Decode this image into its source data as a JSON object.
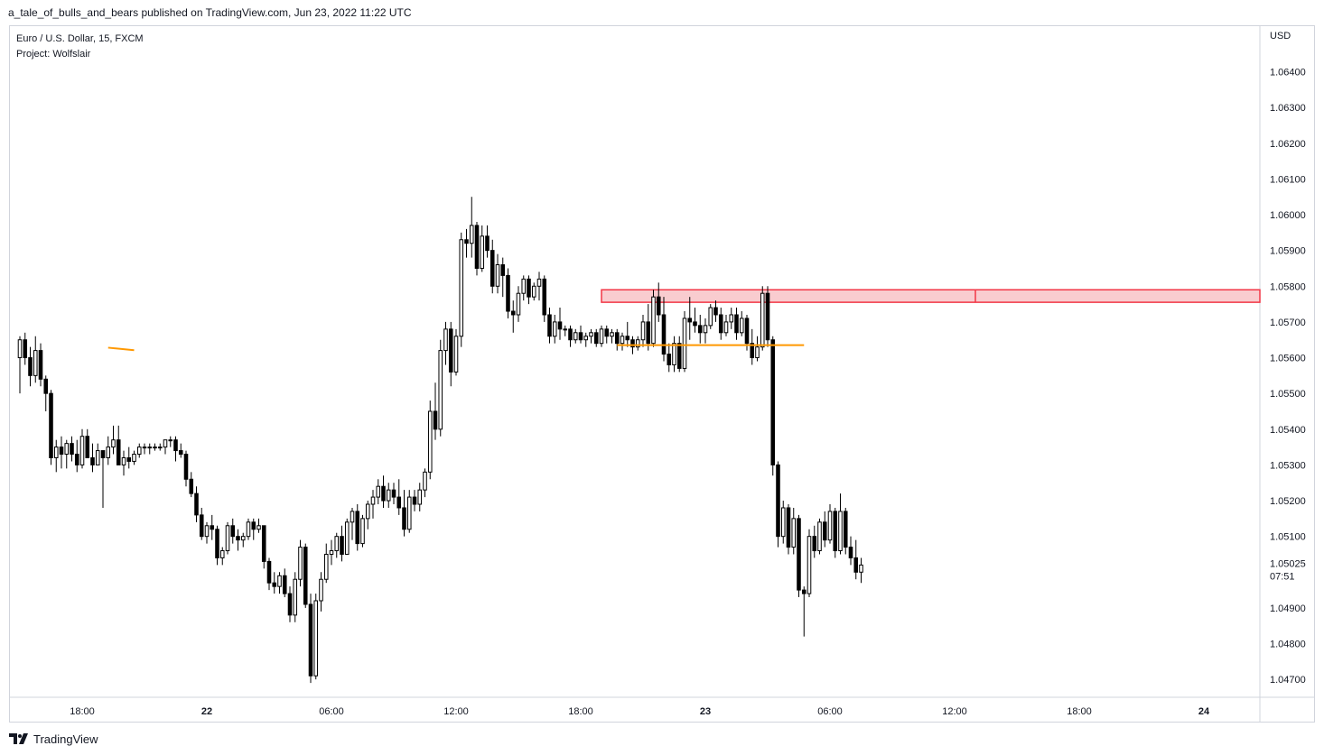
{
  "header": {
    "publisher_line": "a_tale_of_bulls_and_bears published on TradingView.com, Jun 23, 2022 11:22 UTC"
  },
  "legend": {
    "symbol_line": "Euro / U.S. Dollar, 15, FXCM",
    "project_line": "Project: Wolfslair"
  },
  "footer": {
    "brand": "TradingView",
    "logo_icon": "tradingview-logo-icon"
  },
  "colors": {
    "candle": "#000000",
    "zone_fill": "#f9cccf",
    "zone_border": "#f23645",
    "support_line": "#ff9800",
    "grid_border": "#d1d4dc",
    "last_price_bg": "#ffffff"
  },
  "chart_data": {
    "type": "candlestick",
    "symbol": "Euro / U.S. Dollar",
    "interval": "15",
    "source": "FXCM",
    "currency_label": "USD",
    "ylim": [
      1.0465,
      1.0653
    ],
    "xlim": [
      "Jun 21 15:00",
      "Jun 24 05:00"
    ],
    "y_ticks": [
      "1.06400",
      "1.06300",
      "1.06200",
      "1.06100",
      "1.06000",
      "1.05900",
      "1.05800",
      "1.05700",
      "1.05600",
      "1.05500",
      "1.05400",
      "1.05300",
      "1.05200",
      "1.05100",
      "1.04900",
      "1.04800",
      "1.04700"
    ],
    "x_ticks": [
      {
        "label": "18:00",
        "time": "Jun 21 18:00",
        "bold": false
      },
      {
        "label": "22",
        "time": "Jun 22 00:00",
        "bold": true
      },
      {
        "label": "06:00",
        "time": "Jun 22 06:00",
        "bold": false
      },
      {
        "label": "12:00",
        "time": "Jun 22 12:00",
        "bold": false
      },
      {
        "label": "18:00",
        "time": "Jun 22 18:00",
        "bold": false
      },
      {
        "label": "23",
        "time": "Jun 23 00:00",
        "bold": true
      },
      {
        "label": "06:00",
        "time": "Jun 23 06:00",
        "bold": false
      },
      {
        "label": "12:00",
        "time": "Jun 23 12:00",
        "bold": false
      },
      {
        "label": "18:00",
        "time": "Jun 23 18:00",
        "bold": false
      },
      {
        "label": "24",
        "time": "Jun 24 00:00",
        "bold": true
      }
    ],
    "last_price": {
      "value": "1.05025",
      "countdown": "07:51"
    },
    "candles_start": "Jun 21 15:00",
    "bar_minutes": 15,
    "ohlc": [
      [
        1.056,
        1.0566,
        1.055,
        1.0565
      ],
      [
        1.0565,
        1.0567,
        1.0558,
        1.056
      ],
      [
        1.056,
        1.0563,
        1.0552,
        1.0555
      ],
      [
        1.0555,
        1.0566,
        1.0553,
        1.0562
      ],
      [
        1.0562,
        1.0564,
        1.0552,
        1.0554
      ],
      [
        1.0554,
        1.0555,
        1.0545,
        1.055
      ],
      [
        1.055,
        1.0551,
        1.053,
        1.0532
      ],
      [
        1.0532,
        1.0537,
        1.0528,
        1.0535
      ],
      [
        1.0535,
        1.0538,
        1.0529,
        1.0533
      ],
      [
        1.0533,
        1.0537,
        1.0529,
        1.0536
      ],
      [
        1.0536,
        1.0538,
        1.0531,
        1.0533
      ],
      [
        1.0533,
        1.0537,
        1.0528,
        1.053
      ],
      [
        1.053,
        1.054,
        1.0529,
        1.0538
      ],
      [
        1.0538,
        1.054,
        1.0532,
        1.0532
      ],
      [
        1.0532,
        1.0536,
        1.0528,
        1.053
      ],
      [
        1.053,
        1.0536,
        1.053,
        1.0534
      ],
      [
        1.0534,
        1.0534,
        1.0518,
        1.0532
      ],
      [
        1.0532,
        1.0538,
        1.053,
        1.0535
      ],
      [
        1.0535,
        1.0541,
        1.0533,
        1.0537
      ],
      [
        1.0537,
        1.0541,
        1.053,
        1.053
      ],
      [
        1.053,
        1.0534,
        1.0527,
        1.0532
      ],
      [
        1.0532,
        1.0535,
        1.0529,
        1.0531
      ],
      [
        1.0531,
        1.0534,
        1.053,
        1.0533
      ],
      [
        1.0533,
        1.0536,
        1.0532,
        1.0535
      ],
      [
        1.0535,
        1.0536,
        1.0533,
        1.0535
      ],
      [
        1.0535,
        1.0536,
        1.0533,
        1.0535
      ],
      [
        1.0535,
        1.0536,
        1.0534,
        1.0535
      ],
      [
        1.0535,
        1.0536,
        1.0534,
        1.0535
      ],
      [
        1.0535,
        1.0537,
        1.0533,
        1.0537
      ],
      [
        1.0537,
        1.0538,
        1.0535,
        1.0537
      ],
      [
        1.0537,
        1.0538,
        1.0531,
        1.0534
      ],
      [
        1.0534,
        1.0536,
        1.0532,
        1.0533
      ],
      [
        1.0533,
        1.0534,
        1.0524,
        1.0526
      ],
      [
        1.0526,
        1.0528,
        1.0521,
        1.0522
      ],
      [
        1.0522,
        1.0524,
        1.0514,
        1.0516
      ],
      [
        1.0516,
        1.0518,
        1.0509,
        1.051
      ],
      [
        1.051,
        1.0514,
        1.0508,
        1.0513
      ],
      [
        1.0513,
        1.0516,
        1.0509,
        1.0512
      ],
      [
        1.0512,
        1.0513,
        1.0502,
        1.0504
      ],
      [
        1.0504,
        1.0507,
        1.0502,
        1.0506
      ],
      [
        1.0506,
        1.0514,
        1.0505,
        1.0513
      ],
      [
        1.0513,
        1.0515,
        1.0508,
        1.051
      ],
      [
        1.051,
        1.0512,
        1.0506,
        1.0509
      ],
      [
        1.0509,
        1.0511,
        1.0507,
        1.051
      ],
      [
        1.051,
        1.0515,
        1.0509,
        1.0514
      ],
      [
        1.0514,
        1.0515,
        1.0509,
        1.0512
      ],
      [
        1.0512,
        1.0515,
        1.0511,
        1.0513
      ],
      [
        1.0513,
        1.0513,
        1.0501,
        1.0503
      ],
      [
        1.0503,
        1.0504,
        1.0495,
        1.0497
      ],
      [
        1.0497,
        1.05,
        1.0494,
        1.0496
      ],
      [
        1.0496,
        1.05,
        1.0494,
        1.0499
      ],
      [
        1.0499,
        1.0501,
        1.0493,
        1.0494
      ],
      [
        1.0494,
        1.0496,
        1.0486,
        1.0488
      ],
      [
        1.0488,
        1.05,
        1.0486,
        1.0498
      ],
      [
        1.0498,
        1.0509,
        1.0496,
        1.0507
      ],
      [
        1.0507,
        1.0508,
        1.049,
        1.0491
      ],
      [
        1.0491,
        1.0494,
        1.0469,
        1.0471
      ],
      [
        1.0471,
        1.0494,
        1.047,
        1.0492
      ],
      [
        1.0492,
        1.05,
        1.0489,
        1.0498
      ],
      [
        1.0498,
        1.0508,
        1.0497,
        1.0505
      ],
      [
        1.0505,
        1.0509,
        1.0502,
        1.0506
      ],
      [
        1.0506,
        1.0511,
        1.0504,
        1.051
      ],
      [
        1.051,
        1.0513,
        1.0503,
        1.0505
      ],
      [
        1.0505,
        1.0515,
        1.0505,
        1.0514
      ],
      [
        1.0514,
        1.0518,
        1.0509,
        1.0517
      ],
      [
        1.0517,
        1.0519,
        1.0506,
        1.0508
      ],
      [
        1.0508,
        1.0516,
        1.0507,
        1.0515
      ],
      [
        1.0515,
        1.052,
        1.0512,
        1.0519
      ],
      [
        1.0519,
        1.0523,
        1.0515,
        1.0521
      ],
      [
        1.0521,
        1.0526,
        1.0519,
        1.0524
      ],
      [
        1.0524,
        1.0527,
        1.0518,
        1.052
      ],
      [
        1.052,
        1.0525,
        1.0518,
        1.0523
      ],
      [
        1.0523,
        1.0525,
        1.0519,
        1.0521
      ],
      [
        1.0521,
        1.0526,
        1.0516,
        1.0518
      ],
      [
        1.0518,
        1.0523,
        1.051,
        1.0512
      ],
      [
        1.0512,
        1.0523,
        1.0511,
        1.0521
      ],
      [
        1.0521,
        1.0523,
        1.0517,
        1.0519
      ],
      [
        1.0519,
        1.0525,
        1.0517,
        1.0523
      ],
      [
        1.0523,
        1.0529,
        1.0521,
        1.0528
      ],
      [
        1.0528,
        1.0548,
        1.0526,
        1.0545
      ],
      [
        1.0545,
        1.0553,
        1.0537,
        1.054
      ],
      [
        1.054,
        1.0565,
        1.0538,
        1.0562
      ],
      [
        1.0562,
        1.057,
        1.0558,
        1.0568
      ],
      [
        1.0568,
        1.057,
        1.0552,
        1.0556
      ],
      [
        1.0556,
        1.0568,
        1.0555,
        1.0566
      ],
      [
        1.0566,
        1.0595,
        1.0563,
        1.0593
      ],
      [
        1.0593,
        1.0596,
        1.0588,
        1.0592
      ],
      [
        1.0592,
        1.0605,
        1.0588,
        1.0597
      ],
      [
        1.0597,
        1.0598,
        1.0583,
        1.0585
      ],
      [
        1.0585,
        1.0597,
        1.0584,
        1.0594
      ],
      [
        1.0594,
        1.0597,
        1.0588,
        1.059
      ],
      [
        1.059,
        1.0593,
        1.0578,
        1.058
      ],
      [
        1.058,
        1.0589,
        1.0578,
        1.0586
      ],
      [
        1.0586,
        1.0588,
        1.0577,
        1.0583
      ],
      [
        1.0583,
        1.0585,
        1.0571,
        1.0573
      ],
      [
        1.0573,
        1.0576,
        1.0567,
        1.0572
      ],
      [
        1.0572,
        1.058,
        1.057,
        1.0578
      ],
      [
        1.0578,
        1.0583,
        1.0576,
        1.0582
      ],
      [
        1.0582,
        1.0583,
        1.0575,
        1.0577
      ],
      [
        1.0577,
        1.0581,
        1.0576,
        1.058
      ],
      [
        1.058,
        1.0584,
        1.0576,
        1.0582
      ],
      [
        1.0582,
        1.0583,
        1.057,
        1.0572
      ],
      [
        1.0572,
        1.0574,
        1.0564,
        1.0566
      ],
      [
        1.0566,
        1.0572,
        1.0564,
        1.057
      ],
      [
        1.057,
        1.0574,
        1.0565,
        1.0568
      ],
      [
        1.0568,
        1.0569,
        1.0566,
        1.0568
      ],
      [
        1.0568,
        1.0569,
        1.0563,
        1.0565
      ],
      [
        1.0565,
        1.0568,
        1.0564,
        1.0567
      ],
      [
        1.0567,
        1.0569,
        1.0564,
        1.0565
      ],
      [
        1.0565,
        1.0567,
        1.0563,
        1.0566
      ],
      [
        1.0566,
        1.0568,
        1.0564,
        1.0567
      ],
      [
        1.0567,
        1.0568,
        1.0563,
        1.0564
      ],
      [
        1.0564,
        1.0569,
        1.0563,
        1.0568
      ],
      [
        1.0568,
        1.0569,
        1.0564,
        1.0566
      ],
      [
        1.0566,
        1.0568,
        1.0564,
        1.0567
      ],
      [
        1.0567,
        1.0568,
        1.0562,
        1.0564
      ],
      [
        1.0564,
        1.0567,
        1.0562,
        1.0566
      ],
      [
        1.0566,
        1.057,
        1.0563,
        1.0565
      ],
      [
        1.0565,
        1.0566,
        1.0561,
        1.0563
      ],
      [
        1.0563,
        1.0566,
        1.0562,
        1.0565
      ],
      [
        1.0565,
        1.0572,
        1.0563,
        1.057
      ],
      [
        1.057,
        1.0575,
        1.0562,
        1.0564
      ],
      [
        1.0564,
        1.0579,
        1.0563,
        1.0577
      ],
      [
        1.0577,
        1.0581,
        1.057,
        1.0572
      ],
      [
        1.0572,
        1.0577,
        1.0559,
        1.0561
      ],
      [
        1.0561,
        1.0564,
        1.0556,
        1.0558
      ],
      [
        1.0558,
        1.0566,
        1.0556,
        1.0564
      ],
      [
        1.0564,
        1.0566,
        1.0556,
        1.0557
      ],
      [
        1.0557,
        1.0573,
        1.0556,
        1.0571
      ],
      [
        1.0571,
        1.0577,
        1.0565,
        1.057
      ],
      [
        1.057,
        1.0574,
        1.0567,
        1.0569
      ],
      [
        1.0569,
        1.0572,
        1.0564,
        1.0567
      ],
      [
        1.0567,
        1.0571,
        1.0564,
        1.0569
      ],
      [
        1.0569,
        1.0575,
        1.0568,
        1.0574
      ],
      [
        1.0574,
        1.0576,
        1.057,
        1.0572
      ],
      [
        1.0572,
        1.0574,
        1.0565,
        1.0567
      ],
      [
        1.0567,
        1.0572,
        1.0566,
        1.057
      ],
      [
        1.057,
        1.0574,
        1.0568,
        1.0572
      ],
      [
        1.0572,
        1.0574,
        1.0565,
        1.0567
      ],
      [
        1.0567,
        1.0573,
        1.0566,
        1.0571
      ],
      [
        1.0571,
        1.0572,
        1.0562,
        1.0564
      ],
      [
        1.0564,
        1.0568,
        1.0558,
        1.056
      ],
      [
        1.056,
        1.0566,
        1.0559,
        1.0563
      ],
      [
        1.0563,
        1.058,
        1.0562,
        1.0578
      ],
      [
        1.0578,
        1.058,
        1.0563,
        1.0565
      ],
      [
        1.0565,
        1.0566,
        1.0527,
        1.053
      ],
      [
        1.053,
        1.0531,
        1.0507,
        1.051
      ],
      [
        1.051,
        1.052,
        1.0508,
        1.0518
      ],
      [
        1.0518,
        1.0519,
        1.0505,
        1.0507
      ],
      [
        1.0507,
        1.0518,
        1.0505,
        1.0515
      ],
      [
        1.0515,
        1.0516,
        1.0493,
        1.0495
      ],
      [
        1.0495,
        1.0496,
        1.0482,
        1.0494
      ],
      [
        1.0494,
        1.0512,
        1.0493,
        1.051
      ],
      [
        1.051,
        1.0513,
        1.0504,
        1.0506
      ],
      [
        1.0506,
        1.0515,
        1.0505,
        1.0514
      ],
      [
        1.0514,
        1.0517,
        1.0507,
        1.0509
      ],
      [
        1.0509,
        1.0519,
        1.0508,
        1.0517
      ],
      [
        1.0517,
        1.0518,
        1.0504,
        1.0506
      ],
      [
        1.0506,
        1.0522,
        1.0505,
        1.0517
      ],
      [
        1.0517,
        1.0518,
        1.0505,
        1.0507
      ],
      [
        1.0507,
        1.051,
        1.0502,
        1.0504
      ],
      [
        1.0504,
        1.0509,
        1.0498,
        1.05
      ],
      [
        1.05,
        1.0504,
        1.0497,
        1.0502
      ]
    ],
    "annotations": [
      {
        "type": "rectangle",
        "name": "supply-zone",
        "time_start": "Jun 22 19:00",
        "time_end": "Jun 24 05:00",
        "price_top": 1.0579,
        "price_bottom": 1.05755,
        "midline_time": "Jun 23 13:00"
      },
      {
        "type": "horizontal-segment",
        "name": "support-line",
        "time_start": "Jun 22 19:45",
        "time_end": "Jun 23 04:45",
        "price": 1.05635
      },
      {
        "type": "trend-segment",
        "name": "orange-trendline",
        "time_start": "Jun 21 19:15",
        "time_end": "Jun 21 20:30",
        "price_start": 1.05628,
        "price_end": 1.05621
      }
    ]
  }
}
